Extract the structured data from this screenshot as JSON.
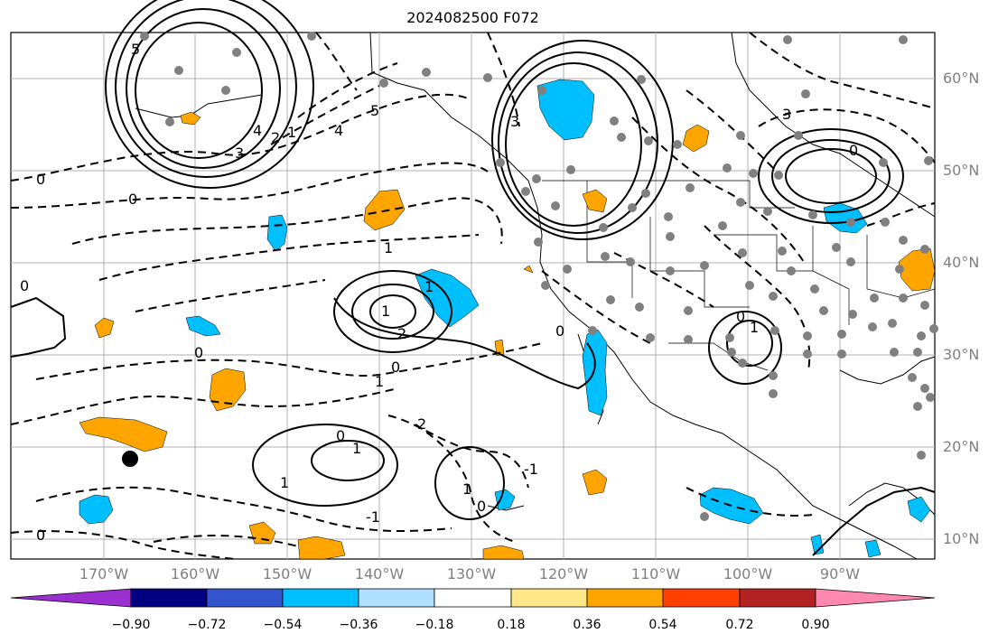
{
  "title": "2024082500 F072",
  "lat_labels": [
    "60°N",
    "50°N",
    "40°N",
    "30°N",
    "20°N",
    "10°N"
  ],
  "lon_labels": [
    "170°W",
    "160°W",
    "150°W",
    "140°W",
    "130°W",
    "120°W",
    "110°W",
    "100°W",
    "90°W"
  ],
  "colorbar": {
    "ticks": [
      "−0.90",
      "−0.72",
      "−0.54",
      "−0.36",
      "−0.18",
      "0.18",
      "0.36",
      "0.54",
      "0.72",
      "0.90"
    ],
    "colors": [
      "#9b30d0",
      "#000080",
      "#3355cc",
      "#00bfff",
      "#b0e0ff",
      "#ffffff",
      "#ffe88a",
      "#ffa500",
      "#ff4000",
      "#b22222",
      "#ff88b0"
    ]
  },
  "contour_labels": [
    "5",
    "4",
    "3",
    "2",
    "1",
    "0",
    "0",
    "0",
    "1",
    "1",
    "2",
    "1",
    "0",
    "1",
    "0",
    "1",
    "0",
    "1",
    "2",
    "3",
    "5",
    "4",
    "3",
    "0",
    "1",
    "0",
    "-1",
    "0",
    "-1",
    "0",
    "1",
    "0"
  ],
  "colors": {
    "positive_fill": "#ffa500",
    "negative_fill": "#00bfff",
    "station_dot": "#808080",
    "grid": "#b0b0b0"
  }
}
